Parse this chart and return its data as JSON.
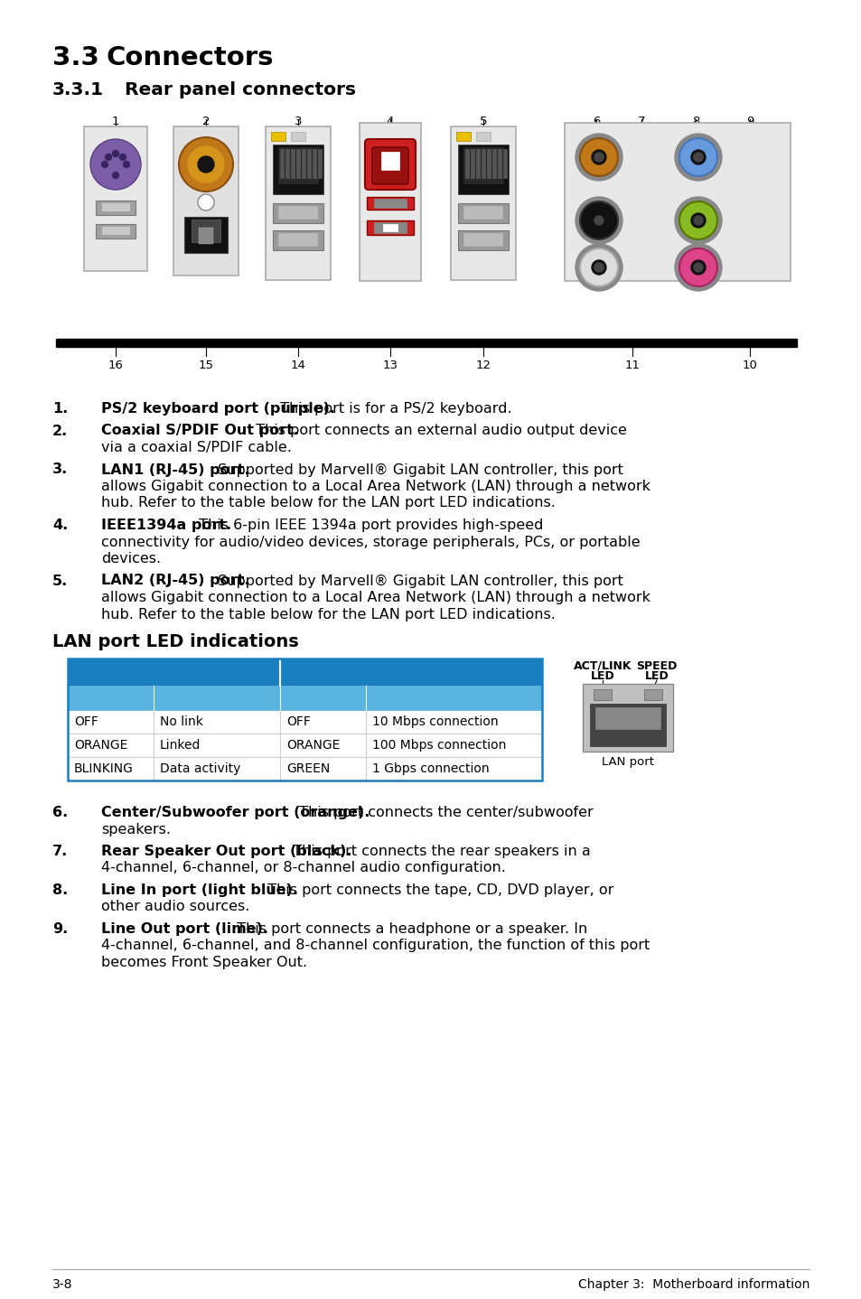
{
  "bg_color": "#ffffff",
  "title": "3.3",
  "title2": "Connectors",
  "subtitle": "3.3.1",
  "subtitle2": "Rear panel connectors",
  "lan_section_title": "LAN port LED indications",
  "table_header_bg": "#1a7fc1",
  "table_subheader_bg": "#5ab4e0",
  "table_border": "#1a7fc1",
  "table_cols": [
    95,
    140,
    95,
    195
  ],
  "table_data": [
    [
      "OFF",
      "No link",
      "OFF",
      "10 Mbps connection"
    ],
    [
      "ORANGE",
      "Linked",
      "ORANGE",
      "100 Mbps connection"
    ],
    [
      "BLINKING",
      "Data activity",
      "GREEN",
      "1 Gbps connection"
    ]
  ],
  "items15": [
    [
      "1.",
      "PS/2 keyboard port (purple).",
      " This port is for a PS/2 keyboard."
    ],
    [
      "2.",
      "Coaxial S/PDIF Out port.",
      " This port connects an external audio output device\nvia a coaxial S/PDIF cable."
    ],
    [
      "3.",
      "LAN1 (RJ-45) port.",
      " Supported by Marvell® Gigabit LAN controller, this port\nallows Gigabit connection to a Local Area Network (LAN) through a network\nhub. Refer to the table below for the LAN port LED indications."
    ],
    [
      "4.",
      "IEEE1394a port.",
      " This 6-pin IEEE 1394a port provides high-speed\nconnectivity for audio/video devices, storage peripherals, PCs, or portable\ndevices."
    ],
    [
      "5.",
      "LAN2 (RJ-45) port.",
      " Supported by Marvell® Gigabit LAN controller, this port\nallows Gigabit connection to a Local Area Network (LAN) through a network\nhub. Refer to the table below for the LAN port LED indications."
    ]
  ],
  "items69": [
    [
      "6.",
      "Center/Subwoofer port (orange).",
      " This port connects the center/subwoofer\nspeakers."
    ],
    [
      "7.",
      "Rear Speaker Out port (black).",
      " This port connects the rear speakers in a\n4-channel, 6-channel, or 8-channel audio configuration."
    ],
    [
      "8.",
      "Line In port (light blue).",
      " This port connects the tape, CD, DVD player, or\nother audio sources."
    ],
    [
      "9.",
      "Line Out port (lime).",
      " This port connects a headphone or a speaker. In\n4-channel, 6-channel, and 8-channel configuration, the function of this port\nbecomes Front Speaker Out."
    ]
  ],
  "footer_left": "3-8",
  "footer_right": "Chapter 3:  Motherboard information"
}
